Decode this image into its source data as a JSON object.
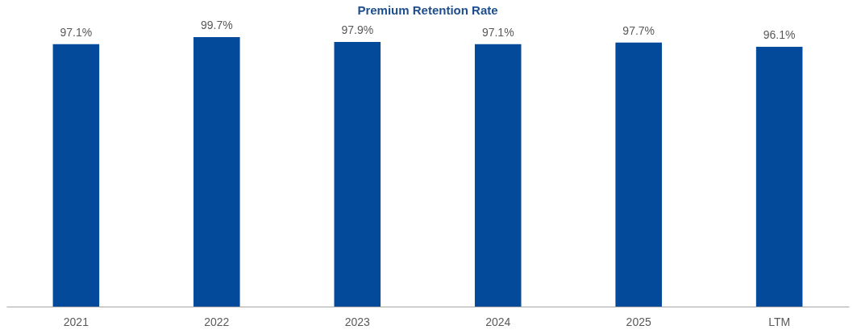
{
  "chart_data": {
    "type": "bar",
    "title": "Premium Retention Rate",
    "categories": [
      "2021",
      "2022",
      "2023",
      "2024",
      "2025",
      "LTM"
    ],
    "values": [
      97.1,
      99.7,
      97.9,
      97.1,
      97.7,
      96.1
    ],
    "color": "#034a9a",
    "value_labels": [
      "97.1%",
      "99.7%",
      "97.9%",
      "97.1%",
      "97.7%",
      "96.1%"
    ],
    "tick_labels": "x"
  }
}
